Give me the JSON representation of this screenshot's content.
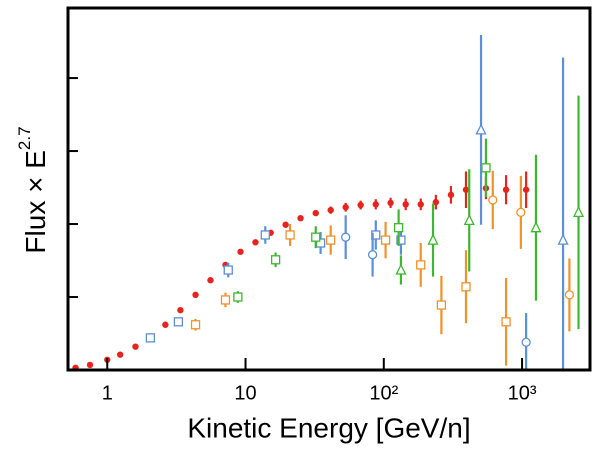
{
  "chart_data": {
    "type": "scatter",
    "xlabel": "Kinetic Energy [GeV/n]",
    "ylabel": "Flux × E",
    "ylabel_exponent": "2.7",
    "xlog": true,
    "xlim": [
      0.52,
      3100
    ],
    "ylim": [
      0,
      4.96
    ],
    "xticks": [
      1,
      10,
      {
        "value": 100,
        "label": "10²"
      },
      {
        "value": 1000,
        "label": "10³"
      }
    ],
    "yticks": [
      1,
      2,
      3,
      4
    ],
    "series": [
      {
        "color": "#e8231e",
        "marker": "circle-filled",
        "x": [
          0.59,
          0.75,
          1,
          1.24,
          1.6,
          2.05,
          2.63,
          3.38,
          4.35,
          5.58,
          7.16,
          9.2,
          11.8,
          15.2,
          19.5,
          25,
          32.2,
          41.3,
          53,
          68,
          87.5,
          112,
          144,
          185,
          238,
          306,
          393,
          548,
          766,
          1070
        ],
        "values": [
          0.03,
          0.07,
          0.14,
          0.21,
          0.32,
          0.45,
          0.62,
          0.82,
          1.03,
          1.23,
          1.44,
          1.62,
          1.75,
          1.88,
          1.99,
          2.08,
          2.15,
          2.19,
          2.23,
          2.26,
          2.27,
          2.29,
          2.27,
          2.27,
          2.3,
          2.4,
          2.47,
          2.49,
          2.47,
          2.47
        ],
        "errors": [
          0.01,
          0.01,
          0.01,
          0.01,
          0.01,
          0.01,
          0.01,
          0.01,
          0.01,
          0.01,
          0.01,
          0.02,
          0.02,
          0.02,
          0.03,
          0.03,
          0.04,
          0.05,
          0.06,
          0.06,
          0.07,
          0.07,
          0.08,
          0.08,
          0.1,
          0.12,
          0.25,
          0.15,
          0.2,
          0.25
        ]
      },
      {
        "color": "#5b8fd6",
        "marker": "square",
        "x": [
          2.05,
          3.27,
          7.5,
          13.9,
          34.9,
          87.5,
          133
        ],
        "values": [
          0.44,
          0.66,
          1.37,
          1.85,
          1.74,
          1.85,
          1.78
        ],
        "errors": [
          0.05,
          0.06,
          0.1,
          0.12,
          0.15,
          0.2,
          0.2
        ]
      },
      {
        "color": "#f0922b",
        "marker": "square",
        "x": [
          4.35,
          7.16,
          21,
          41.3,
          103,
          185,
          261,
          393,
          766
        ],
        "values": [
          0.62,
          0.96,
          1.85,
          1.78,
          1.78,
          1.44,
          0.89,
          1.14,
          0.66
        ],
        "errors": [
          0.08,
          0.1,
          0.15,
          0.2,
          0.25,
          0.3,
          0.4,
          0.5,
          0.6
        ]
      },
      {
        "color": "#3cb82e",
        "marker": "square",
        "x": [
          8.8,
          16.5,
          32.2,
          128,
          548
        ],
        "values": [
          1.0,
          1.51,
          1.82,
          1.95,
          2.77
        ],
        "errors": [
          0.08,
          0.1,
          0.15,
          0.25,
          0.4
        ]
      },
      {
        "color": "#5b8fd6",
        "marker": "circle",
        "x": [
          53,
          83,
          1070
        ],
        "values": [
          1.82,
          1.58,
          0.38
        ],
        "errors": [
          0.3,
          0.3,
          0.4
        ]
      },
      {
        "color": "#f0922b",
        "marker": "circle",
        "x": [
          614,
          980,
          2200
        ],
        "values": [
          2.33,
          2.16,
          1.03
        ],
        "errors": [
          0.4,
          0.5,
          0.5
        ]
      },
      {
        "color": "#3cb82e",
        "marker": "triangle",
        "x": [
          133,
          227,
          415,
          1260,
          2560
        ],
        "values": [
          1.37,
          1.78,
          2.05,
          1.95,
          2.16
        ],
        "errors": [
          0.2,
          0.5,
          0.7,
          1.0,
          1.6
        ]
      },
      {
        "color": "#5b8fd6",
        "marker": "triangle",
        "x": [
          505,
          1980
        ],
        "values": [
          3.29,
          1.78
        ],
        "errors": [
          1.3,
          2.5
        ]
      }
    ]
  }
}
